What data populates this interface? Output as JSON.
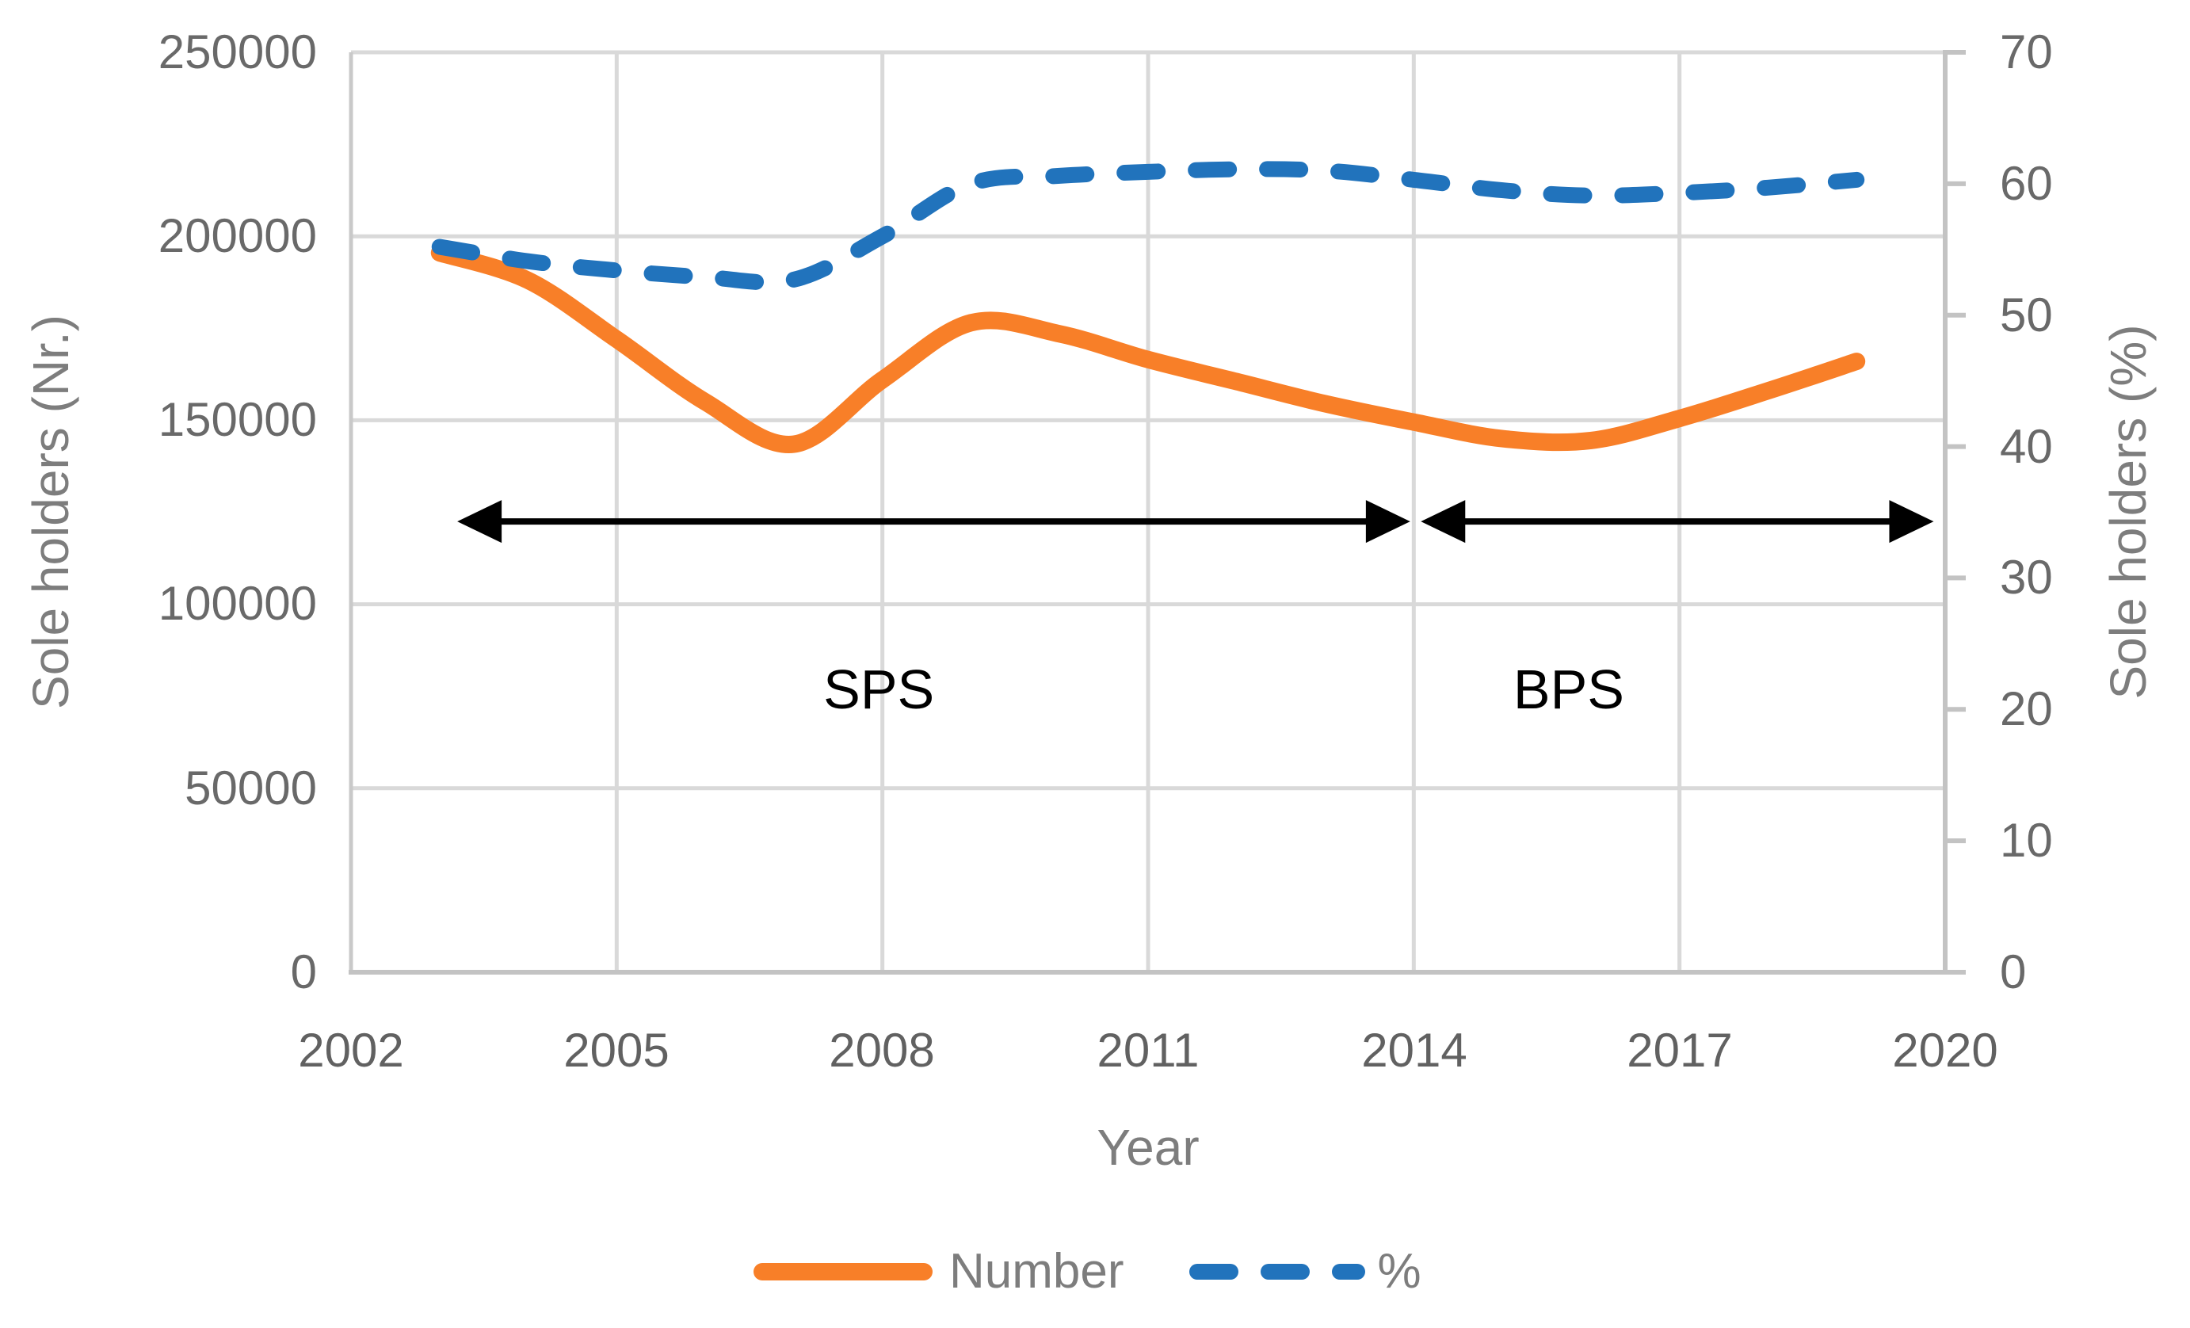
{
  "chart_data": {
    "type": "line",
    "title": "",
    "xlabel": "Year",
    "x_range": [
      2002,
      2020
    ],
    "x_ticks": [
      2002,
      2005,
      2008,
      2011,
      2014,
      2017,
      2020
    ],
    "grid_years": [
      2005,
      2008,
      2011,
      2014,
      2017
    ],
    "grid": true,
    "legend_position": "bottom",
    "left_axis": {
      "label": "Sole holders (Nr.)",
      "range": [
        0,
        250000
      ],
      "ticks": [
        0,
        50000,
        100000,
        150000,
        200000,
        250000
      ]
    },
    "right_axis": {
      "label": "Sole holders (%)",
      "range": [
        0,
        70
      ],
      "ticks": [
        0,
        10,
        20,
        30,
        40,
        50,
        60,
        70
      ]
    },
    "series": [
      {
        "name": "Number",
        "axis": "left",
        "style": "solid",
        "color": "#F87F28",
        "x": [
          2003,
          2004,
          2005,
          2006,
          2007,
          2008,
          2009,
          2010,
          2011,
          2012,
          2013,
          2014,
          2015,
          2016,
          2017,
          2018,
          2019
        ],
        "values": [
          195500,
          188000,
          172000,
          155000,
          143500,
          161000,
          176500,
          173500,
          166500,
          160500,
          154500,
          149500,
          145000,
          144500,
          150500,
          158000,
          166000
        ]
      },
      {
        "name": "%",
        "axis": "right",
        "style": "dashed",
        "color": "#2173BC",
        "x": [
          2003,
          2004,
          2005,
          2006,
          2007,
          2008,
          2009,
          2010,
          2011,
          2012,
          2013,
          2014,
          2015,
          2016,
          2017,
          2018,
          2019
        ],
        "values": [
          55.2,
          54.1,
          53.4,
          52.9,
          52.7,
          56.0,
          60.0,
          60.6,
          60.9,
          61.1,
          61.0,
          60.3,
          59.5,
          59.1,
          59.3,
          59.7,
          60.3
        ]
      }
    ],
    "annotations": {
      "arrows": [
        {
          "name": "sps-arrow",
          "x_start_year": 2003.2,
          "x_end_year": 2013.96,
          "value": 122500
        },
        {
          "name": "bps-arrow",
          "x_start_year": 2014.08,
          "x_end_year": 2019.87,
          "value": 122500
        }
      ],
      "labels": [
        {
          "text": "SPS",
          "year": 2007.96,
          "value": 76900
        },
        {
          "text": "BPS",
          "year": 2015.75,
          "value": 76900
        }
      ]
    }
  },
  "axes": {
    "left": {
      "title": "Sole holders (Nr.)",
      "ticks": [
        "250000",
        "200000",
        "150000",
        "100000",
        "50000",
        "0"
      ]
    },
    "right": {
      "title": "Sole holders (%)",
      "ticks": [
        "70",
        "60",
        "50",
        "40",
        "30",
        "20",
        "10",
        "0"
      ]
    },
    "x": {
      "title": "Year",
      "ticks": [
        "2002",
        "2005",
        "2008",
        "2011",
        "2014",
        "2017",
        "2020"
      ]
    }
  },
  "legend": {
    "items": [
      {
        "label": "Number"
      },
      {
        "label": "%"
      }
    ]
  },
  "annotation_texts": {
    "sps": "SPS",
    "bps": "BPS"
  }
}
